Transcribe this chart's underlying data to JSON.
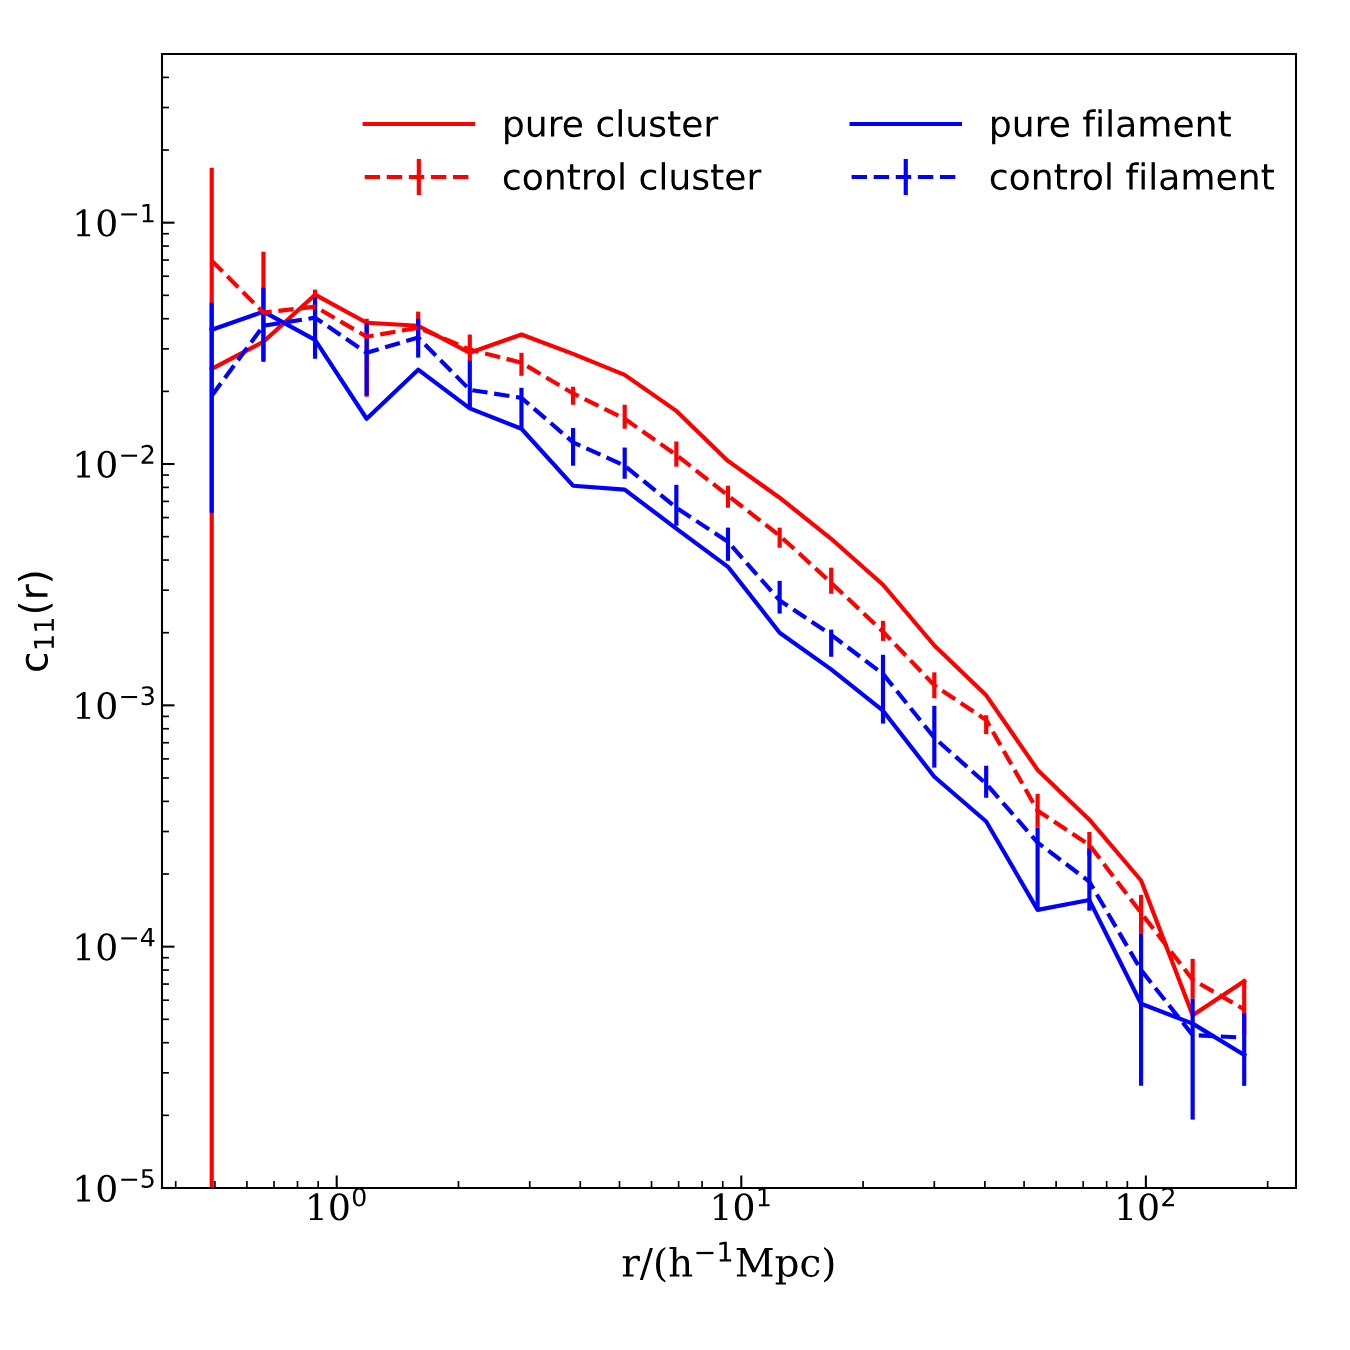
{
  "chart_data": {
    "type": "line",
    "xlabel": "r/(h$^{−1}$Mpc)",
    "ylabel": "c$_{11}$(r)",
    "log": "xy",
    "grid": false,
    "legend": "top",
    "x": [
      0.491,
      0.659,
      0.884,
      1.186,
      1.59,
      2.133,
      2.862,
      3.839,
      5.15,
      6.91,
      9.27,
      12.44,
      16.68,
      22.4,
      30.0,
      40.3,
      54.0,
      72.5,
      97.3,
      130.5,
      175
    ],
    "xlim": [
      0.37,
      235
    ],
    "ylim": [
      1e-05,
      0.5
    ],
    "xticks": [
      {
        "value": 1,
        "label": "10$^{0}$"
      },
      {
        "value": 10,
        "label": "10$^{1}$"
      },
      {
        "value": 100,
        "label": "10$^{2}$"
      }
    ],
    "yticks": [
      {
        "value": 1e-05,
        "label": "10$^{−5}$"
      },
      {
        "value": 0.0001,
        "label": "10$^{−4}$"
      },
      {
        "value": 0.001,
        "label": "10$^{−3}$"
      },
      {
        "value": 0.01,
        "label": "10$^{−2}$"
      },
      {
        "value": 0.1,
        "label": "10$^{−1}$"
      }
    ],
    "series": [
      {
        "name": "pure cluster",
        "color": "#ff0000",
        "line_style": "solid",
        "values": [
          0.0248,
          0.0321,
          0.0503,
          0.0385,
          0.0374,
          0.0289,
          0.0344,
          0.0286,
          0.0234,
          0.0166,
          0.0103,
          0.00725,
          0.0049,
          0.00316,
          0.00177,
          0.0011,
          0.00054,
          0.000336,
          0.000188,
          5.2e-05,
          7.2e-05
        ]
      },
      {
        "name": "control cluster",
        "color": "#ff0000",
        "line_style": "dashed",
        "values": [
          0.0696,
          0.0424,
          0.0449,
          0.0337,
          0.0367,
          0.0298,
          0.0263,
          0.0196,
          0.0154,
          0.0109,
          0.0074,
          0.00505,
          0.00322,
          0.00202,
          0.00121,
          0.00087,
          0.000366,
          0.000264,
          0.000138,
          7.3e-05,
          5.5e-05
        ],
        "errors": [
          [
            1e-05,
            0.169
          ],
          [
            0.0268,
            0.0758
          ],
          [
            0.0393,
            0.0528
          ],
          [
            0.019,
            0.04
          ],
          [
            0.0315,
            0.0428
          ],
          [
            0.0265,
            0.0344
          ],
          [
            0.0232,
            0.0289
          ],
          [
            0.0176,
            0.0209
          ],
          [
            0.014,
            0.0176
          ],
          [
            0.00975,
            0.0124
          ],
          [
            0.00659,
            0.00813
          ],
          [
            0.0045,
            0.00545
          ],
          [
            0.0029,
            0.00372
          ],
          [
            0.00185,
            0.00224
          ],
          [
            0.00107,
            0.00137
          ],
          [
            0.00076,
            0.00091
          ],
          [
            0.000311,
            0.00043
          ],
          [
            0.000238,
            0.000299
          ],
          [
            0.000113,
            0.000164
          ],
          [
            6.1e-05,
            8.9e-05
          ],
          [
            4.3e-05,
            7.3e-05
          ]
        ]
      },
      {
        "name": "pure filament",
        "color": "#0000ff",
        "line_style": "solid",
        "values": [
          0.036,
          0.0428,
          0.0327,
          0.0154,
          0.0246,
          0.017,
          0.014,
          0.00813,
          0.00783,
          0.0054,
          0.00375,
          0.002,
          0.00141,
          0.00095,
          0.000506,
          0.00033,
          0.000142,
          0.000156,
          5.8e-05,
          4.8e-05,
          3.56e-05
        ]
      },
      {
        "name": "control filament",
        "color": "#0000ff",
        "line_style": "dashed",
        "values": [
          0.0192,
          0.0374,
          0.0404,
          0.0289,
          0.0334,
          0.0203,
          0.0188,
          0.0123,
          0.00984,
          0.00659,
          0.00476,
          0.00272,
          0.00196,
          0.00135,
          0.000734,
          0.000473,
          0.00027,
          0.000186,
          8e-05,
          4.3e-05,
          4.2e-05
        ],
        "errors": [
          [
            0.00628,
            0.0466
          ],
          [
            0.0265,
            0.0538
          ],
          [
            0.0273,
            0.0489
          ],
          [
            0.0192,
            0.0381
          ],
          [
            0.0276,
            0.04
          ],
          [
            0.0171,
            0.0268
          ],
          [
            0.0141,
            0.0207
          ],
          [
            0.00984,
            0.0141
          ],
          [
            0.00869,
            0.0117
          ],
          [
            0.00555,
            0.0082
          ],
          [
            0.00397,
            0.00545
          ],
          [
            0.0024,
            0.00328
          ],
          [
            0.00159,
            0.00206
          ],
          [
            0.00084,
            0.00162
          ],
          [
            0.000552,
            0.000995
          ],
          [
            0.000414,
            0.000562
          ],
          [
            0.000142,
            0.000311
          ],
          [
            0.000141,
            0.000255
          ],
          [
            2.65e-05,
            0.000113
          ],
          [
            1.92e-05,
            6.1e-05
          ],
          [
            2.65e-05,
            5.3e-05
          ]
        ]
      }
    ]
  }
}
